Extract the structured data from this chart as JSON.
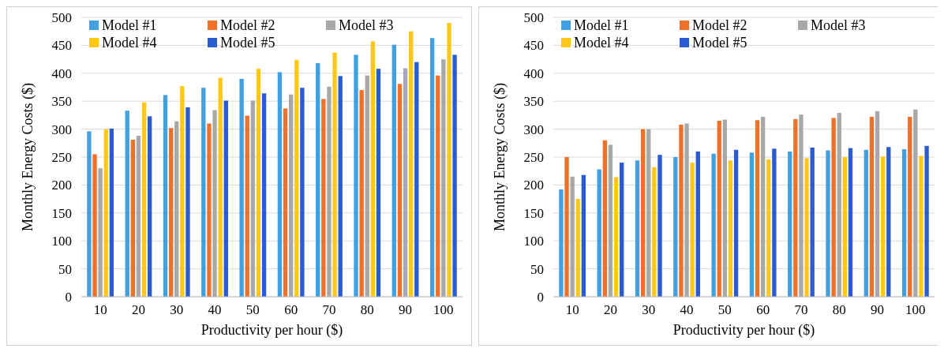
{
  "chart_data": [
    {
      "type": "bar",
      "xlabel": "Productivity per hour ($)",
      "ylabel": "Monthly Energy Costs ($)",
      "categories": [
        "10",
        "20",
        "30",
        "40",
        "50",
        "60",
        "70",
        "80",
        "90",
        "100"
      ],
      "ylim": [
        0,
        500
      ],
      "yticks": [
        0,
        50,
        100,
        150,
        200,
        250,
        300,
        350,
        400,
        450,
        500
      ],
      "grid": "y",
      "legend": "top left",
      "series": [
        {
          "name": "Model #1",
          "color": "#41a0e0",
          "values": [
            296,
            333,
            361,
            374,
            390,
            402,
            418,
            433,
            451,
            463
          ]
        },
        {
          "name": "Model #2",
          "color": "#f0702a",
          "values": [
            255,
            281,
            302,
            310,
            324,
            337,
            354,
            370,
            381,
            396
          ]
        },
        {
          "name": "Model #3",
          "color": "#a8a8a8",
          "values": [
            230,
            288,
            314,
            334,
            351,
            362,
            376,
            396,
            409,
            425
          ]
        },
        {
          "name": "Model #4",
          "color": "#ffc819",
          "values": [
            300,
            348,
            377,
            392,
            408,
            424,
            437,
            457,
            475,
            490
          ]
        },
        {
          "name": "Model #5",
          "color": "#2a5bd0",
          "values": [
            301,
            323,
            339,
            351,
            364,
            374,
            395,
            408,
            420,
            433
          ]
        }
      ]
    },
    {
      "type": "bar",
      "xlabel": "Productivity per hour ($)",
      "ylabel": "Monthly Energy Costs ($)",
      "categories": [
        "10",
        "20",
        "30",
        "40",
        "50",
        "60",
        "70",
        "80",
        "90",
        "100"
      ],
      "ylim": [
        0,
        500
      ],
      "yticks": [
        0,
        50,
        100,
        150,
        200,
        250,
        300,
        350,
        400,
        450,
        500
      ],
      "grid": "y",
      "legend": "top left",
      "series": [
        {
          "name": "Model #1",
          "color": "#41a0e0",
          "values": [
            192,
            228,
            244,
            250,
            256,
            258,
            260,
            262,
            263,
            264
          ]
        },
        {
          "name": "Model #2",
          "color": "#f0702a",
          "values": [
            250,
            280,
            300,
            308,
            315,
            316,
            318,
            320,
            322,
            322
          ]
        },
        {
          "name": "Model #3",
          "color": "#a8a8a8",
          "values": [
            215,
            272,
            300,
            310,
            317,
            322,
            326,
            329,
            332,
            335
          ]
        },
        {
          "name": "Model #4",
          "color": "#ffc819",
          "values": [
            175,
            214,
            232,
            240,
            244,
            246,
            248,
            250,
            251,
            252
          ]
        },
        {
          "name": "Model #5",
          "color": "#2a5bd0",
          "values": [
            218,
            240,
            254,
            260,
            263,
            265,
            267,
            266,
            268,
            270
          ]
        }
      ]
    }
  ]
}
